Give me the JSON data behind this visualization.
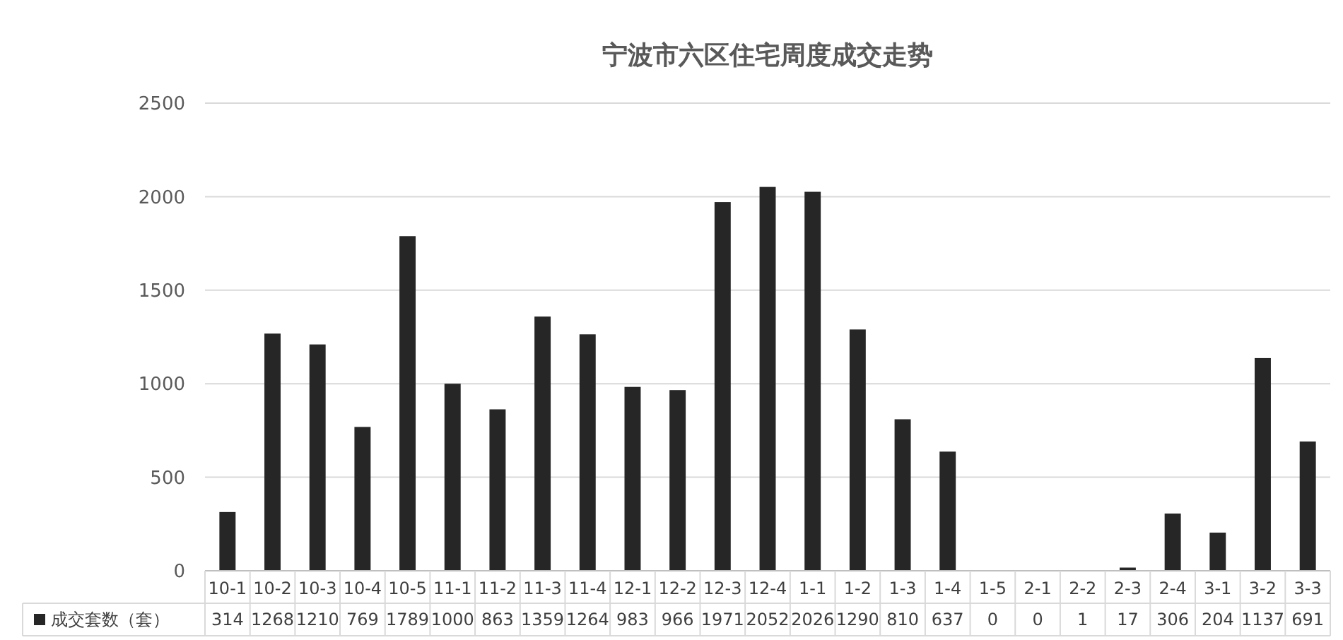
{
  "chart_data": {
    "type": "bar",
    "title": "宁波市六区住宅周度成交走势",
    "categories": [
      "10-1",
      "10-2",
      "10-3",
      "10-4",
      "10-5",
      "11-1",
      "11-2",
      "11-3",
      "11-4",
      "12-1",
      "12-2",
      "12-3",
      "12-4",
      "1-1",
      "1-2",
      "1-3",
      "1-4",
      "1-5",
      "2-1",
      "2-2",
      "2-3",
      "2-4",
      "3-1",
      "3-2",
      "3-3"
    ],
    "series": [
      {
        "name": "成交套数（套）",
        "color": "#262626",
        "values": [
          314,
          1268,
          1210,
          769,
          1789,
          1000,
          863,
          1359,
          1264,
          983,
          966,
          1971,
          2052,
          2026,
          1290,
          810,
          637,
          0,
          0,
          1,
          17,
          306,
          204,
          1137,
          691
        ]
      }
    ],
    "ylim": [
      0,
      2500
    ],
    "yticks": [
      0,
      500,
      1000,
      1500,
      2000,
      2500
    ],
    "grid": "y",
    "legend": "bottom",
    "data_labels": true
  }
}
